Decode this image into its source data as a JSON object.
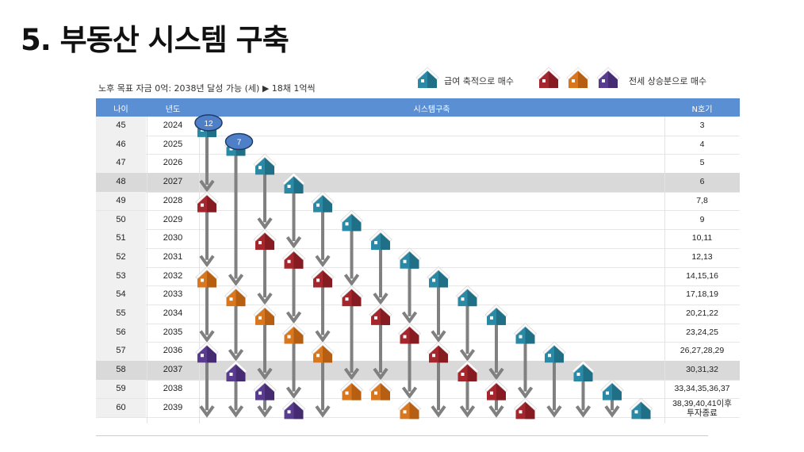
{
  "title": "5. 부동산 시스템 구축",
  "subtitle": "노후 목표 자금 0억: 2038년 달성 가능 (세) ▶ 18채 1억씩",
  "colors": {
    "header": "#5b8fd4",
    "teal": "#2a8aa6",
    "red": "#a5262c",
    "orange": "#d9771e",
    "purple": "#5a3c8f",
    "arrow": "#808080",
    "highlight": "#d9d9d9"
  },
  "legend": {
    "savings_label": "급여 축적으로 매수",
    "savings_icon": "house-teal-icon",
    "jeonse_label": "전세 상승분으로 매수",
    "jeonse_icons": [
      "house-red-icon",
      "house-orange-icon",
      "house-purple-icon"
    ]
  },
  "table": {
    "headers": {
      "age": "나이",
      "year": "년도",
      "system": "시스템구축",
      "n": "N호기"
    },
    "rows": [
      {
        "age": "45",
        "year": "2024",
        "n": "3"
      },
      {
        "age": "46",
        "year": "2025",
        "n": "4"
      },
      {
        "age": "47",
        "year": "2026",
        "n": "5"
      },
      {
        "age": "48",
        "year": "2027",
        "n": "6",
        "highlight": true
      },
      {
        "age": "49",
        "year": "2028",
        "n": "7,8"
      },
      {
        "age": "50",
        "year": "2029",
        "n": "9"
      },
      {
        "age": "51",
        "year": "2030",
        "n": "10,11"
      },
      {
        "age": "52",
        "year": "2031",
        "n": "12,13"
      },
      {
        "age": "53",
        "year": "2032",
        "n": "14,15,16"
      },
      {
        "age": "54",
        "year": "2033",
        "n": "17,18,19"
      },
      {
        "age": "55",
        "year": "2034",
        "n": "20,21,22"
      },
      {
        "age": "56",
        "year": "2035",
        "n": "23,24,25"
      },
      {
        "age": "57",
        "year": "2036",
        "n": "26,27,28,29"
      },
      {
        "age": "58",
        "year": "2037",
        "n": "30,31,32",
        "highlight": true
      },
      {
        "age": "59",
        "year": "2038",
        "n": "33,34,35,36,37"
      },
      {
        "age": "60",
        "year": "2039",
        "n": "38,39,40,41이후",
        "n2": "투자종료"
      }
    ]
  },
  "badges": [
    "12",
    "7"
  ],
  "houses": [
    {
      "col": 0,
      "row": 0,
      "c": "teal"
    },
    {
      "col": 1,
      "row": 1,
      "c": "teal"
    },
    {
      "col": 2,
      "row": 2,
      "c": "teal"
    },
    {
      "col": 3,
      "row": 3,
      "c": "teal"
    },
    {
      "col": 4,
      "row": 4,
      "c": "teal"
    },
    {
      "col": 5,
      "row": 5,
      "c": "teal"
    },
    {
      "col": 6,
      "row": 6,
      "c": "teal"
    },
    {
      "col": 7,
      "row": 7,
      "c": "teal"
    },
    {
      "col": 8,
      "row": 8,
      "c": "teal"
    },
    {
      "col": 9,
      "row": 9,
      "c": "teal"
    },
    {
      "col": 10,
      "row": 10,
      "c": "teal"
    },
    {
      "col": 11,
      "row": 11,
      "c": "teal"
    },
    {
      "col": 12,
      "row": 12,
      "c": "teal"
    },
    {
      "col": 13,
      "row": 13,
      "c": "teal"
    },
    {
      "col": 14,
      "row": 14,
      "c": "teal"
    },
    {
      "col": 15,
      "row": 15,
      "c": "teal"
    },
    {
      "col": 0,
      "row": 4,
      "c": "red"
    },
    {
      "col": 2,
      "row": 6,
      "c": "red"
    },
    {
      "col": 3,
      "row": 7,
      "c": "red"
    },
    {
      "col": 4,
      "row": 8,
      "c": "red"
    },
    {
      "col": 5,
      "row": 9,
      "c": "red"
    },
    {
      "col": 6,
      "row": 10,
      "c": "red"
    },
    {
      "col": 7,
      "row": 11,
      "c": "red"
    },
    {
      "col": 8,
      "row": 12,
      "c": "red"
    },
    {
      "col": 9,
      "row": 13,
      "c": "red"
    },
    {
      "col": 10,
      "row": 14,
      "c": "red"
    },
    {
      "col": 11,
      "row": 15,
      "c": "red"
    },
    {
      "col": 0,
      "row": 8,
      "c": "orange"
    },
    {
      "col": 1,
      "row": 9,
      "c": "orange"
    },
    {
      "col": 2,
      "row": 10,
      "c": "orange"
    },
    {
      "col": 3,
      "row": 11,
      "c": "orange"
    },
    {
      "col": 4,
      "row": 12,
      "c": "orange"
    },
    {
      "col": 5,
      "row": 14,
      "c": "orange"
    },
    {
      "col": 6,
      "row": 14,
      "c": "orange"
    },
    {
      "col": 7,
      "row": 15,
      "c": "orange"
    },
    {
      "col": 0,
      "row": 12,
      "c": "purple"
    },
    {
      "col": 1,
      "row": 13,
      "c": "purple"
    },
    {
      "col": 2,
      "row": 14,
      "c": "purple"
    },
    {
      "col": 3,
      "row": 15,
      "c": "purple"
    }
  ],
  "arrows": [
    {
      "col": 0,
      "from": 0,
      "to": 3
    },
    {
      "col": 0,
      "from": 4,
      "to": 7
    },
    {
      "col": 0,
      "from": 8,
      "to": 11
    },
    {
      "col": 0,
      "from": 12,
      "to": 15
    },
    {
      "col": 1,
      "from": 1,
      "to": 8
    },
    {
      "col": 1,
      "from": 9,
      "to": 12
    },
    {
      "col": 1,
      "from": 13,
      "to": 15
    },
    {
      "col": 2,
      "from": 2,
      "to": 5
    },
    {
      "col": 2,
      "from": 6,
      "to": 9
    },
    {
      "col": 2,
      "from": 10,
      "to": 13
    },
    {
      "col": 2,
      "from": 14,
      "to": 15
    },
    {
      "col": 3,
      "from": 3,
      "to": 6
    },
    {
      "col": 3,
      "from": 7,
      "to": 10
    },
    {
      "col": 3,
      "from": 11,
      "to": 14
    },
    {
      "col": 4,
      "from": 4,
      "to": 7
    },
    {
      "col": 4,
      "from": 8,
      "to": 11
    },
    {
      "col": 4,
      "from": 12,
      "to": 15
    },
    {
      "col": 5,
      "from": 5,
      "to": 8
    },
    {
      "col": 5,
      "from": 9,
      "to": 13
    },
    {
      "col": 6,
      "from": 6,
      "to": 9
    },
    {
      "col": 6,
      "from": 10,
      "to": 13
    },
    {
      "col": 7,
      "from": 7,
      "to": 10
    },
    {
      "col": 7,
      "from": 11,
      "to": 14
    },
    {
      "col": 8,
      "from": 8,
      "to": 11
    },
    {
      "col": 8,
      "from": 12,
      "to": 15
    },
    {
      "col": 9,
      "from": 9,
      "to": 12
    },
    {
      "col": 9,
      "from": 13,
      "to": 15
    },
    {
      "col": 10,
      "from": 10,
      "to": 13
    },
    {
      "col": 10,
      "from": 14,
      "to": 15
    },
    {
      "col": 11,
      "from": 11,
      "to": 14
    },
    {
      "col": 12,
      "from": 12,
      "to": 15
    },
    {
      "col": 13,
      "from": 13,
      "to": 15
    },
    {
      "col": 14,
      "from": 14,
      "to": 15
    }
  ]
}
